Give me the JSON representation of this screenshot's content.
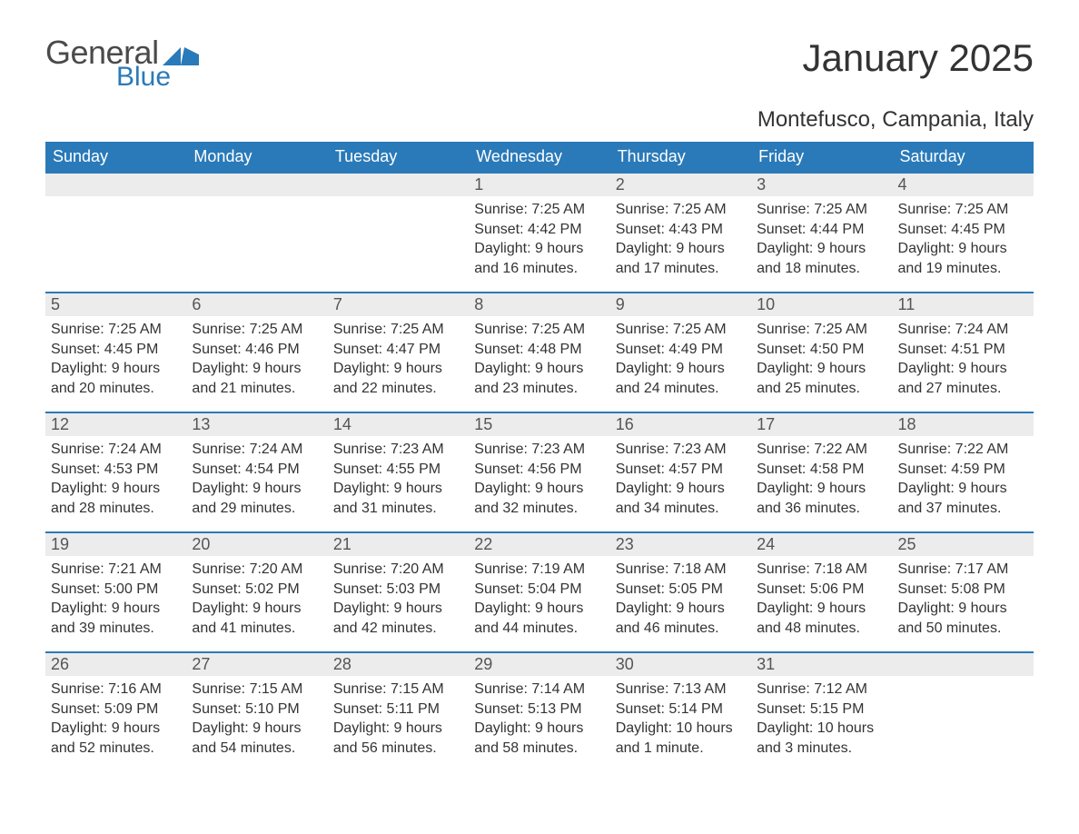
{
  "logo": {
    "text_general": "General",
    "text_blue": "Blue"
  },
  "title": "January 2025",
  "location": "Montefusco, Campania, Italy",
  "colors": {
    "header_bg": "#2a7ab9",
    "header_text": "#ffffff",
    "band_bg": "#ececec",
    "band_border": "#2a7ab9",
    "body_text": "#333333",
    "logo_gray": "#4a4a4a",
    "logo_blue": "#2a7ab9",
    "page_bg": "#ffffff"
  },
  "typography": {
    "title_fontsize": 42,
    "location_fontsize": 24,
    "th_fontsize": 18,
    "daynum_fontsize": 18,
    "body_fontsize": 16,
    "font_family": "Arial"
  },
  "day_headers": [
    "Sunday",
    "Monday",
    "Tuesday",
    "Wednesday",
    "Thursday",
    "Friday",
    "Saturday"
  ],
  "weeks": [
    [
      {
        "day": "",
        "sunrise": "",
        "sunset": "",
        "daylight1": "",
        "daylight2": ""
      },
      {
        "day": "",
        "sunrise": "",
        "sunset": "",
        "daylight1": "",
        "daylight2": ""
      },
      {
        "day": "",
        "sunrise": "",
        "sunset": "",
        "daylight1": "",
        "daylight2": ""
      },
      {
        "day": "1",
        "sunrise": "Sunrise: 7:25 AM",
        "sunset": "Sunset: 4:42 PM",
        "daylight1": "Daylight: 9 hours",
        "daylight2": "and 16 minutes."
      },
      {
        "day": "2",
        "sunrise": "Sunrise: 7:25 AM",
        "sunset": "Sunset: 4:43 PM",
        "daylight1": "Daylight: 9 hours",
        "daylight2": "and 17 minutes."
      },
      {
        "day": "3",
        "sunrise": "Sunrise: 7:25 AM",
        "sunset": "Sunset: 4:44 PM",
        "daylight1": "Daylight: 9 hours",
        "daylight2": "and 18 minutes."
      },
      {
        "day": "4",
        "sunrise": "Sunrise: 7:25 AM",
        "sunset": "Sunset: 4:45 PM",
        "daylight1": "Daylight: 9 hours",
        "daylight2": "and 19 minutes."
      }
    ],
    [
      {
        "day": "5",
        "sunrise": "Sunrise: 7:25 AM",
        "sunset": "Sunset: 4:45 PM",
        "daylight1": "Daylight: 9 hours",
        "daylight2": "and 20 minutes."
      },
      {
        "day": "6",
        "sunrise": "Sunrise: 7:25 AM",
        "sunset": "Sunset: 4:46 PM",
        "daylight1": "Daylight: 9 hours",
        "daylight2": "and 21 minutes."
      },
      {
        "day": "7",
        "sunrise": "Sunrise: 7:25 AM",
        "sunset": "Sunset: 4:47 PM",
        "daylight1": "Daylight: 9 hours",
        "daylight2": "and 22 minutes."
      },
      {
        "day": "8",
        "sunrise": "Sunrise: 7:25 AM",
        "sunset": "Sunset: 4:48 PM",
        "daylight1": "Daylight: 9 hours",
        "daylight2": "and 23 minutes."
      },
      {
        "day": "9",
        "sunrise": "Sunrise: 7:25 AM",
        "sunset": "Sunset: 4:49 PM",
        "daylight1": "Daylight: 9 hours",
        "daylight2": "and 24 minutes."
      },
      {
        "day": "10",
        "sunrise": "Sunrise: 7:25 AM",
        "sunset": "Sunset: 4:50 PM",
        "daylight1": "Daylight: 9 hours",
        "daylight2": "and 25 minutes."
      },
      {
        "day": "11",
        "sunrise": "Sunrise: 7:24 AM",
        "sunset": "Sunset: 4:51 PM",
        "daylight1": "Daylight: 9 hours",
        "daylight2": "and 27 minutes."
      }
    ],
    [
      {
        "day": "12",
        "sunrise": "Sunrise: 7:24 AM",
        "sunset": "Sunset: 4:53 PM",
        "daylight1": "Daylight: 9 hours",
        "daylight2": "and 28 minutes."
      },
      {
        "day": "13",
        "sunrise": "Sunrise: 7:24 AM",
        "sunset": "Sunset: 4:54 PM",
        "daylight1": "Daylight: 9 hours",
        "daylight2": "and 29 minutes."
      },
      {
        "day": "14",
        "sunrise": "Sunrise: 7:23 AM",
        "sunset": "Sunset: 4:55 PM",
        "daylight1": "Daylight: 9 hours",
        "daylight2": "and 31 minutes."
      },
      {
        "day": "15",
        "sunrise": "Sunrise: 7:23 AM",
        "sunset": "Sunset: 4:56 PM",
        "daylight1": "Daylight: 9 hours",
        "daylight2": "and 32 minutes."
      },
      {
        "day": "16",
        "sunrise": "Sunrise: 7:23 AM",
        "sunset": "Sunset: 4:57 PM",
        "daylight1": "Daylight: 9 hours",
        "daylight2": "and 34 minutes."
      },
      {
        "day": "17",
        "sunrise": "Sunrise: 7:22 AM",
        "sunset": "Sunset: 4:58 PM",
        "daylight1": "Daylight: 9 hours",
        "daylight2": "and 36 minutes."
      },
      {
        "day": "18",
        "sunrise": "Sunrise: 7:22 AM",
        "sunset": "Sunset: 4:59 PM",
        "daylight1": "Daylight: 9 hours",
        "daylight2": "and 37 minutes."
      }
    ],
    [
      {
        "day": "19",
        "sunrise": "Sunrise: 7:21 AM",
        "sunset": "Sunset: 5:00 PM",
        "daylight1": "Daylight: 9 hours",
        "daylight2": "and 39 minutes."
      },
      {
        "day": "20",
        "sunrise": "Sunrise: 7:20 AM",
        "sunset": "Sunset: 5:02 PM",
        "daylight1": "Daylight: 9 hours",
        "daylight2": "and 41 minutes."
      },
      {
        "day": "21",
        "sunrise": "Sunrise: 7:20 AM",
        "sunset": "Sunset: 5:03 PM",
        "daylight1": "Daylight: 9 hours",
        "daylight2": "and 42 minutes."
      },
      {
        "day": "22",
        "sunrise": "Sunrise: 7:19 AM",
        "sunset": "Sunset: 5:04 PM",
        "daylight1": "Daylight: 9 hours",
        "daylight2": "and 44 minutes."
      },
      {
        "day": "23",
        "sunrise": "Sunrise: 7:18 AM",
        "sunset": "Sunset: 5:05 PM",
        "daylight1": "Daylight: 9 hours",
        "daylight2": "and 46 minutes."
      },
      {
        "day": "24",
        "sunrise": "Sunrise: 7:18 AM",
        "sunset": "Sunset: 5:06 PM",
        "daylight1": "Daylight: 9 hours",
        "daylight2": "and 48 minutes."
      },
      {
        "day": "25",
        "sunrise": "Sunrise: 7:17 AM",
        "sunset": "Sunset: 5:08 PM",
        "daylight1": "Daylight: 9 hours",
        "daylight2": "and 50 minutes."
      }
    ],
    [
      {
        "day": "26",
        "sunrise": "Sunrise: 7:16 AM",
        "sunset": "Sunset: 5:09 PM",
        "daylight1": "Daylight: 9 hours",
        "daylight2": "and 52 minutes."
      },
      {
        "day": "27",
        "sunrise": "Sunrise: 7:15 AM",
        "sunset": "Sunset: 5:10 PM",
        "daylight1": "Daylight: 9 hours",
        "daylight2": "and 54 minutes."
      },
      {
        "day": "28",
        "sunrise": "Sunrise: 7:15 AM",
        "sunset": "Sunset: 5:11 PM",
        "daylight1": "Daylight: 9 hours",
        "daylight2": "and 56 minutes."
      },
      {
        "day": "29",
        "sunrise": "Sunrise: 7:14 AM",
        "sunset": "Sunset: 5:13 PM",
        "daylight1": "Daylight: 9 hours",
        "daylight2": "and 58 minutes."
      },
      {
        "day": "30",
        "sunrise": "Sunrise: 7:13 AM",
        "sunset": "Sunset: 5:14 PM",
        "daylight1": "Daylight: 10 hours",
        "daylight2": "and 1 minute."
      },
      {
        "day": "31",
        "sunrise": "Sunrise: 7:12 AM",
        "sunset": "Sunset: 5:15 PM",
        "daylight1": "Daylight: 10 hours",
        "daylight2": "and 3 minutes."
      },
      {
        "day": "",
        "sunrise": "",
        "sunset": "",
        "daylight1": "",
        "daylight2": ""
      }
    ]
  ]
}
